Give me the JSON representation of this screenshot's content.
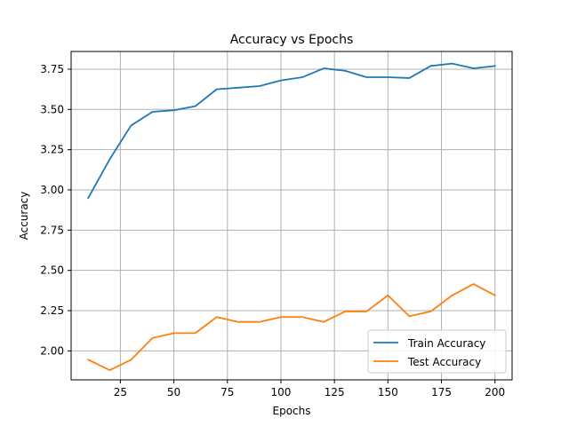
{
  "chart_data": {
    "type": "line",
    "title": "Accuracy vs Epochs",
    "xlabel": "Epochs",
    "ylabel": "Accuracy",
    "xlim": [
      2,
      208
    ],
    "ylim": [
      1.82,
      3.86
    ],
    "xticks": [
      25,
      50,
      75,
      100,
      125,
      150,
      175,
      200
    ],
    "yticks": [
      2.0,
      2.25,
      2.5,
      2.75,
      3.0,
      3.25,
      3.5,
      3.75
    ],
    "grid": true,
    "legend_position": "lower right",
    "x": [
      10,
      20,
      30,
      40,
      50,
      60,
      70,
      80,
      90,
      100,
      110,
      120,
      130,
      140,
      150,
      160,
      170,
      180,
      190,
      200
    ],
    "series": [
      {
        "name": "Train Accuracy",
        "color": "#1f77b4",
        "values": [
          2.95,
          3.19,
          3.4,
          3.485,
          3.495,
          3.52,
          3.625,
          3.635,
          3.645,
          3.68,
          3.7,
          3.755,
          3.74,
          3.7,
          3.7,
          3.695,
          3.77,
          3.785,
          3.755,
          3.77
        ]
      },
      {
        "name": "Test Accuracy",
        "color": "#ff7f0e",
        "values": [
          1.945,
          1.88,
          1.945,
          2.08,
          2.11,
          2.11,
          2.21,
          2.18,
          2.18,
          2.21,
          2.21,
          2.18,
          2.245,
          2.245,
          2.345,
          2.215,
          2.245,
          2.345,
          2.415,
          2.345
        ]
      }
    ]
  }
}
